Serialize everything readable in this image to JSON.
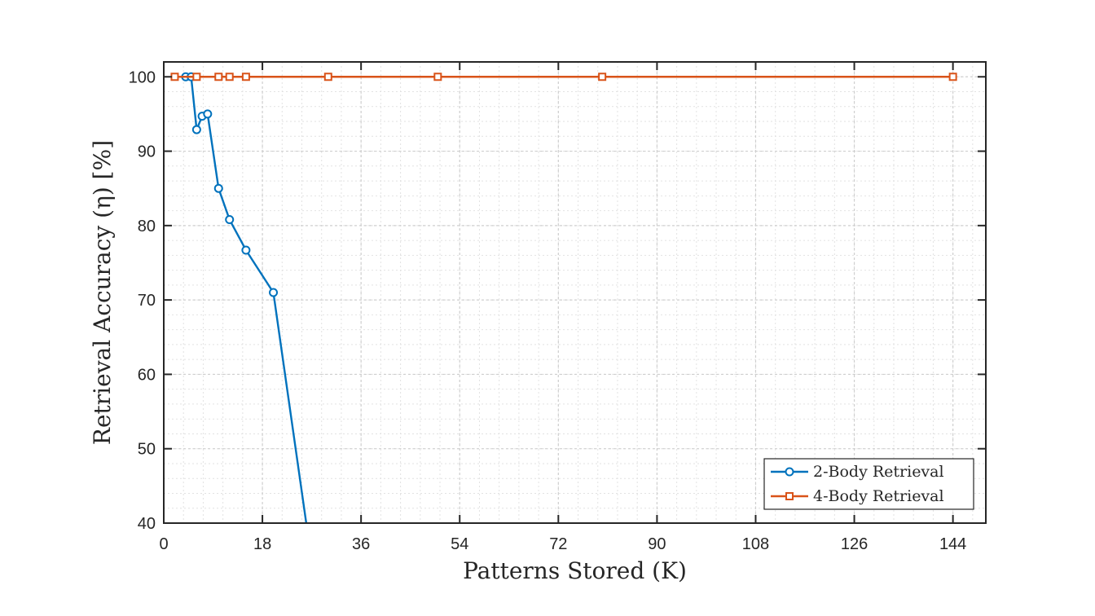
{
  "chart_data": {
    "type": "line",
    "title": "",
    "xlabel": "Patterns Stored (K)",
    "ylabel": "Retrieval Accuracy (η) [%]",
    "xlim": [
      0,
      150
    ],
    "ylim": [
      40,
      102
    ],
    "xticks": [
      0,
      18,
      36,
      54,
      72,
      90,
      108,
      126,
      144
    ],
    "yticks": [
      40,
      50,
      60,
      70,
      80,
      90,
      100
    ],
    "grid": true,
    "minor_grid": true,
    "legend_position": "bottom-right",
    "series": [
      {
        "name": "2-Body Retrieval",
        "color": "#0072BD",
        "marker": "circle",
        "x": [
          4,
          5,
          6,
          7,
          8,
          10,
          12,
          15,
          20,
          26
        ],
        "y": [
          100,
          100,
          92.9,
          94.7,
          95.0,
          85.0,
          80.8,
          76.7,
          71.0,
          40
        ]
      },
      {
        "name": "4-Body Retrieval",
        "color": "#D95319",
        "marker": "square",
        "x": [
          2,
          6,
          10,
          12,
          15,
          30,
          50,
          80,
          144
        ],
        "y": [
          100,
          100,
          100,
          100,
          100,
          100,
          100,
          100,
          100
        ]
      }
    ]
  }
}
